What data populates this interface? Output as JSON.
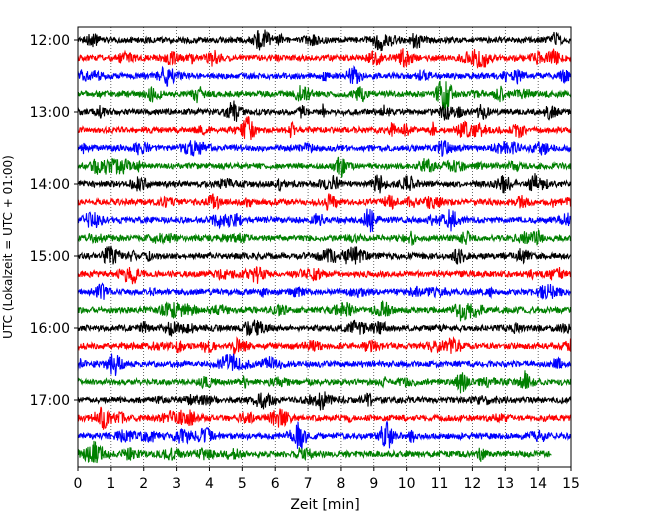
{
  "chart_data": {
    "type": "line",
    "title": "",
    "xlabel": "Zeit  [min]",
    "ylabel": "UTC (Lokalzeit = UTC + 01:00)",
    "xlim": [
      0,
      15
    ],
    "x_ticks": [
      "0",
      "1",
      "2",
      "3",
      "4",
      "5",
      "6",
      "7",
      "8",
      "9",
      "10",
      "11",
      "12",
      "13",
      "14",
      "15"
    ],
    "y_ticks": [
      "12:00",
      "13:00",
      "14:00",
      "15:00",
      "16:00",
      "17:00"
    ],
    "grid": "vertical dotted at each minute",
    "colors_cycle": [
      "#000000",
      "#ff0000",
      "#0000ff",
      "#008000"
    ],
    "traces": [
      {
        "start": "12:00",
        "color": "#000000"
      },
      {
        "start": "12:15",
        "color": "#ff0000"
      },
      {
        "start": "12:30",
        "color": "#0000ff"
      },
      {
        "start": "12:45",
        "color": "#008000"
      },
      {
        "start": "13:00",
        "color": "#000000"
      },
      {
        "start": "13:15",
        "color": "#ff0000"
      },
      {
        "start": "13:30",
        "color": "#0000ff"
      },
      {
        "start": "13:45",
        "color": "#008000"
      },
      {
        "start": "14:00",
        "color": "#000000"
      },
      {
        "start": "14:15",
        "color": "#ff0000"
      },
      {
        "start": "14:30",
        "color": "#0000ff"
      },
      {
        "start": "14:45",
        "color": "#008000"
      },
      {
        "start": "15:00",
        "color": "#000000"
      },
      {
        "start": "15:15",
        "color": "#ff0000"
      },
      {
        "start": "15:30",
        "color": "#0000ff"
      },
      {
        "start": "15:45",
        "color": "#008000"
      },
      {
        "start": "16:00",
        "color": "#000000"
      },
      {
        "start": "16:15",
        "color": "#ff0000"
      },
      {
        "start": "16:30",
        "color": "#0000ff"
      },
      {
        "start": "16:45",
        "color": "#008000"
      },
      {
        "start": "17:00",
        "color": "#000000"
      },
      {
        "start": "17:15",
        "color": "#ff0000"
      },
      {
        "start": "17:30",
        "color": "#0000ff"
      },
      {
        "start": "17:45",
        "color": "#008000",
        "end_min": 14.4
      }
    ]
  }
}
